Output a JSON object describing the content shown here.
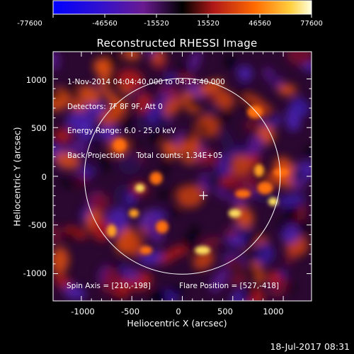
{
  "colorbar": {
    "ticks": [
      "-77600",
      "-46560",
      "-15520",
      "15520",
      "46560",
      "77600"
    ],
    "colors": [
      "#1010ff",
      "#3a00c8",
      "#6a1a8a",
      "#000000",
      "#c02020",
      "#ff7a00",
      "#ffff80"
    ]
  },
  "plot": {
    "title": "Reconstructed RHESSI Image",
    "info_lines": [
      "1-Nov-2014 04:04:40.000 to 04:14:40.000",
      "Detectors: 7F 8F 9F, Att 0",
      "Energy Range: 6.0 - 25.0 keV",
      "Back Projection     Total counts: 1.34E+05"
    ],
    "spin_axis": "Spin Axis = [210,-198]",
    "flare_position": "Flare Position = [527,-418]",
    "xlabel": "Heliocentric X (arcsec)",
    "ylabel": "Heliocentric Y (arcsec)",
    "xticks": [
      "-1000",
      "-500",
      "0",
      "500",
      "1000"
    ],
    "yticks": [
      "1000",
      "500",
      "0",
      "-500",
      "-1000"
    ],
    "xrange": [
      -1280,
      1280
    ],
    "yrange": [
      -1280,
      1280
    ],
    "solar_limb_radius": 970,
    "spin_axis_xy": [
      210,
      -198
    ]
  },
  "footer": {
    "date": "18-Jul-2017 08:31"
  }
}
